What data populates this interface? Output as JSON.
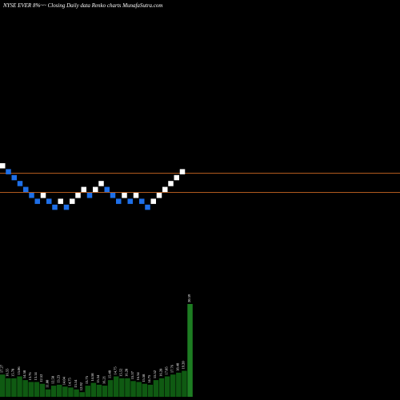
{
  "chart_data": {
    "type": "renko",
    "title": "NYSE EVER 8%~~ Closing Daily data Renko charts MunafaSutra.com",
    "colors": {
      "background": "#000000",
      "up_brick": "#ffffff",
      "down_brick": "#1e6fe8",
      "reference_line": "#b05a1e",
      "volume": "#0f5a12",
      "volume_last": "#1d7d22"
    },
    "grid": false,
    "reference_levels": [
      {
        "name": "upper"
      },
      {
        "name": "lower"
      }
    ],
    "bricks": [
      {
        "dir": "up",
        "level": 0
      },
      {
        "dir": "down",
        "level": -1
      },
      {
        "dir": "down",
        "level": -2
      },
      {
        "dir": "down",
        "level": -3
      },
      {
        "dir": "down",
        "level": -4
      },
      {
        "dir": "down",
        "level": -5
      },
      {
        "dir": "down",
        "level": -6
      },
      {
        "dir": "up",
        "level": -5
      },
      {
        "dir": "down",
        "level": -6
      },
      {
        "dir": "down",
        "level": -7
      },
      {
        "dir": "up",
        "level": -6
      },
      {
        "dir": "down",
        "level": -7
      },
      {
        "dir": "up",
        "level": -6
      },
      {
        "dir": "up",
        "level": -5
      },
      {
        "dir": "up",
        "level": -4
      },
      {
        "dir": "down",
        "level": -5
      },
      {
        "dir": "up",
        "level": -4
      },
      {
        "dir": "up",
        "level": -3
      },
      {
        "dir": "down",
        "level": -4
      },
      {
        "dir": "down",
        "level": -5
      },
      {
        "dir": "down",
        "level": -6
      },
      {
        "dir": "up",
        "level": -5
      },
      {
        "dir": "down",
        "level": -6
      },
      {
        "dir": "up",
        "level": -5
      },
      {
        "dir": "down",
        "level": -6
      },
      {
        "dir": "down",
        "level": -7
      },
      {
        "dir": "up",
        "level": -6
      },
      {
        "dir": "up",
        "level": -5
      },
      {
        "dir": "up",
        "level": -4
      },
      {
        "dir": "up",
        "level": -3
      },
      {
        "dir": "up",
        "level": -2
      },
      {
        "dir": "up",
        "level": -1
      }
    ],
    "volume_labels": [
      "17.27",
      "16.55",
      "15.78",
      "15.06",
      "14.38",
      "13.76",
      "13.14",
      "12.52",
      "11.80",
      "12.58",
      "13.23",
      "14.04",
      "14.75",
      "13.14",
      "12.92",
      "13.75",
      "14.58",
      "15.34",
      "16.21",
      "15.48",
      "14.75",
      "15.52",
      "16.28",
      "15.57",
      "16.34",
      "15.58",
      "14.75",
      "15.52",
      "16.28",
      "17.05",
      "17.76",
      "18.48",
      "19.20",
      "20.39"
    ],
    "volume_values": [
      0.24,
      0.2,
      0.2,
      0.22,
      0.18,
      0.16,
      0.16,
      0.14,
      0.08,
      0.12,
      0.13,
      0.11,
      0.1,
      0.08,
      0.05,
      0.12,
      0.15,
      0.13,
      0.12,
      0.18,
      0.22,
      0.2,
      0.2,
      0.17,
      0.16,
      0.14,
      0.13,
      0.18,
      0.2,
      0.22,
      0.24,
      0.26,
      0.28,
      1.0
    ]
  }
}
